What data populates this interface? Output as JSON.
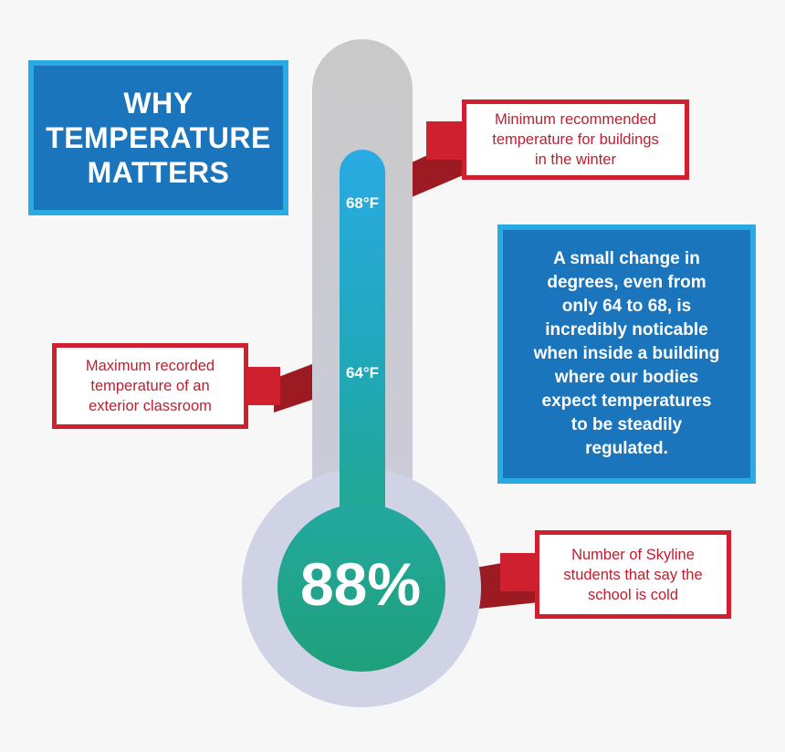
{
  "title": {
    "lines": [
      "WHY",
      "TEMPERATURE",
      "MATTERS"
    ]
  },
  "thermometer": {
    "label_top": "68°F",
    "label_mid": "64°F",
    "bulb_value": "88%"
  },
  "callouts": {
    "min_recommended": [
      "Minimum recommended",
      "temperature for buildings",
      "in the winter"
    ],
    "max_recorded": [
      "Maximum recorded",
      "temperature of an",
      "exterior classroom"
    ],
    "students_cold": [
      "Number of Skyline",
      "students that say the",
      "school is cold"
    ]
  },
  "info": {
    "lines": [
      "A small change in",
      "degrees, even from",
      "only 64 to 68, is",
      "incredibly noticable",
      "when inside a building",
      "where our bodies",
      "expect temperatures",
      "to be steadily",
      "regulated."
    ]
  },
  "colors": {
    "background": "#f7f7f7",
    "blue_box": "#1b75bc",
    "blue_border": "#29aae2",
    "red": "#cf202f",
    "dark_red": "#9c1b22",
    "tube_top": "#29aae2",
    "tube_bottom": "#23a88e",
    "outer_tube": "#c8c8cc",
    "outer_bulb": "#d0d2e8"
  }
}
